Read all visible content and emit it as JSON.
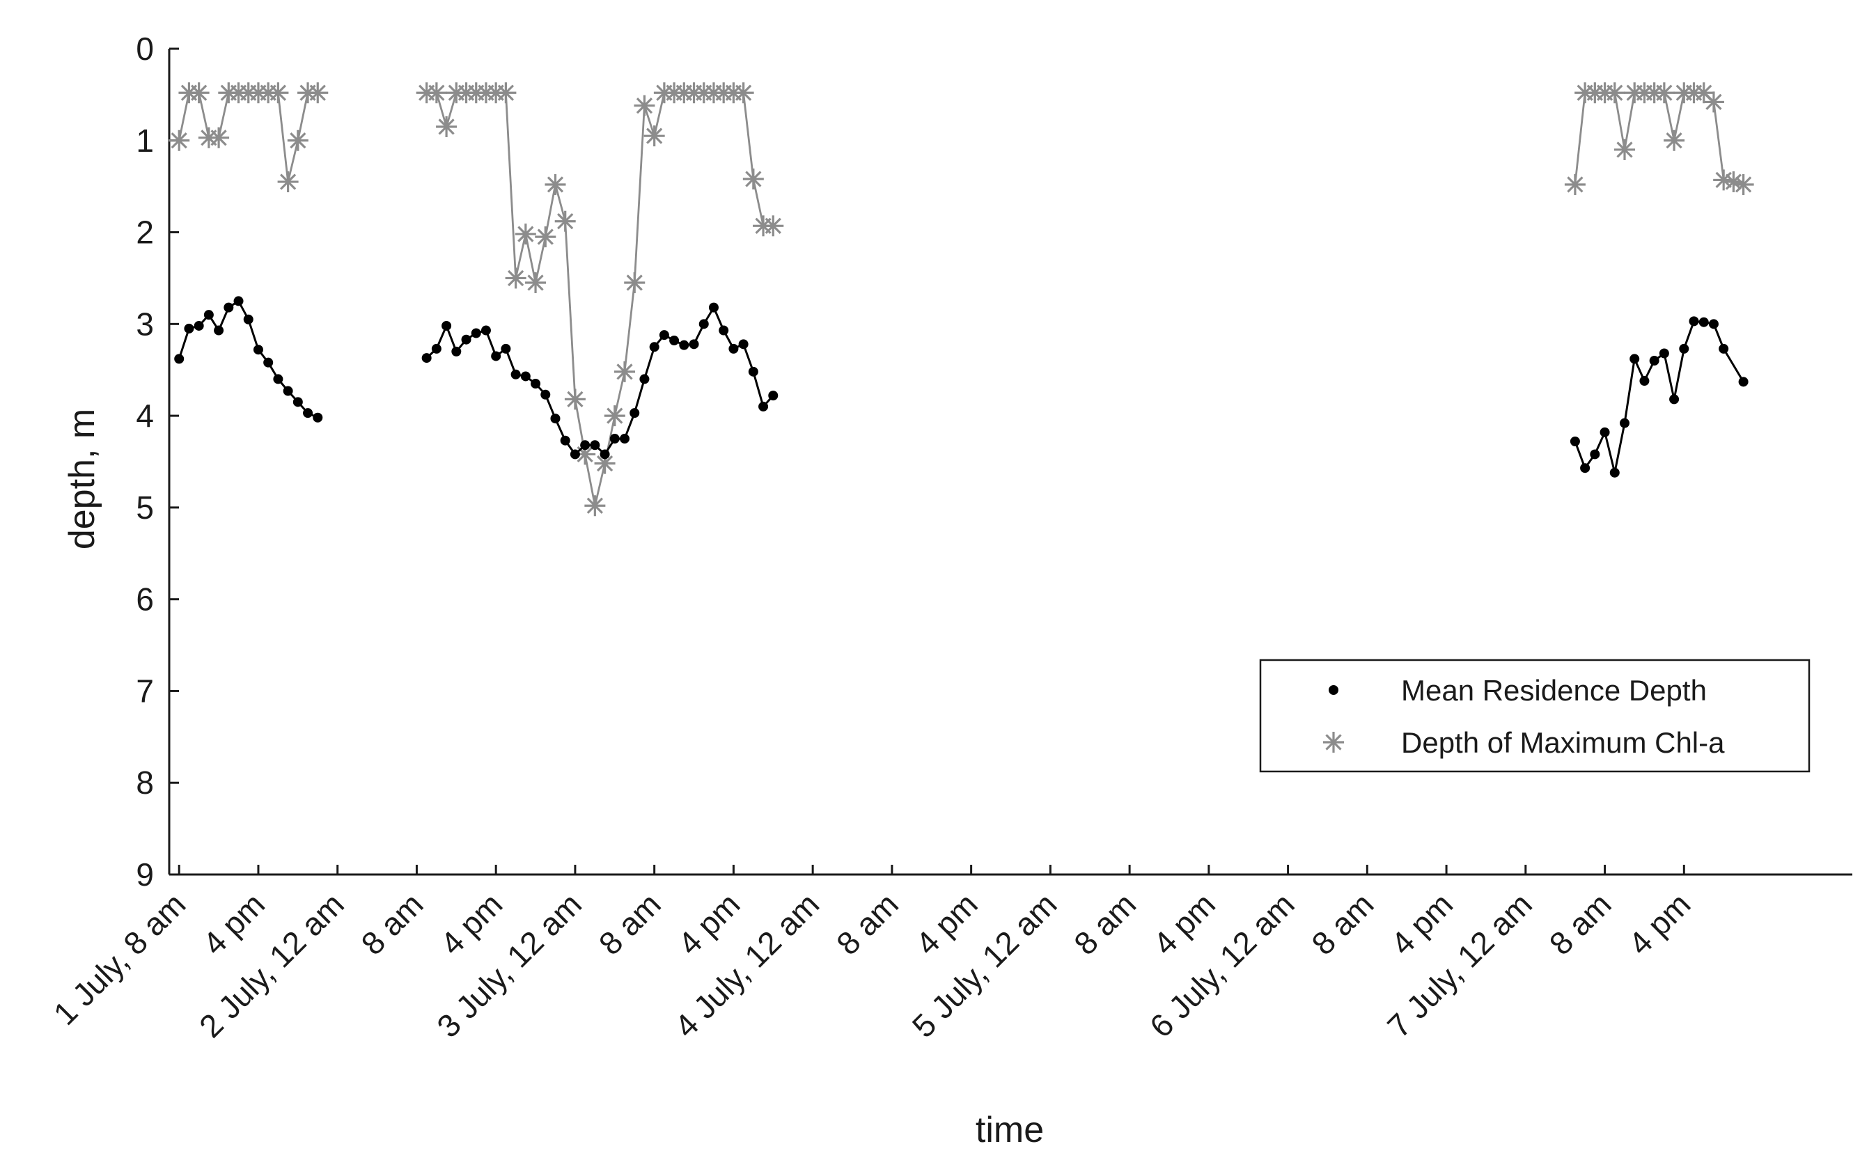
{
  "chart_data": {
    "type": "line",
    "title": "",
    "xlabel": "time",
    "ylabel": "depth, m",
    "ylim": [
      0,
      9
    ],
    "y_reversed": true,
    "yticks": [
      "0",
      "1",
      "2",
      "3",
      "4",
      "5",
      "6",
      "7",
      "8",
      "9"
    ],
    "xlim": [
      7,
      177
    ],
    "x_units": "hours since 1 July 12 am",
    "x_ticks": [
      {
        "hour": 8,
        "label": "1 July, 8 am"
      },
      {
        "hour": 16,
        "label": "4 pm"
      },
      {
        "hour": 24,
        "label": "2 July, 12 am"
      },
      {
        "hour": 32,
        "label": "8 am"
      },
      {
        "hour": 40,
        "label": "4 pm"
      },
      {
        "hour": 48,
        "label": "3 July, 12 am"
      },
      {
        "hour": 56,
        "label": "8 am"
      },
      {
        "hour": 64,
        "label": "4 pm"
      },
      {
        "hour": 72,
        "label": "4 July, 12 am"
      },
      {
        "hour": 80,
        "label": "8 am"
      },
      {
        "hour": 88,
        "label": "4 pm"
      },
      {
        "hour": 96,
        "label": "5 July, 12 am"
      },
      {
        "hour": 104,
        "label": "8 am"
      },
      {
        "hour": 112,
        "label": "4 pm"
      },
      {
        "hour": 120,
        "label": "6 July, 12 am"
      },
      {
        "hour": 128,
        "label": "8 am"
      },
      {
        "hour": 136,
        "label": "4 pm"
      },
      {
        "hour": 144,
        "label": "7 July, 12 am"
      },
      {
        "hour": 152,
        "label": "8 am"
      },
      {
        "hour": 160,
        "label": "4 pm"
      }
    ],
    "legend_position": "right, lower-middle",
    "series": [
      {
        "name": "Mean Residence Depth",
        "marker": "dot",
        "color": "#000000",
        "segments": [
          {
            "x": [
              8,
              9,
              10,
              11,
              12,
              13,
              14,
              15,
              16,
              17,
              18,
              19,
              20,
              21,
              22
            ],
            "y": [
              3.38,
              3.05,
              3.02,
              2.9,
              3.07,
              2.82,
              2.75,
              2.95,
              3.28,
              3.42,
              3.6,
              3.73,
              3.85,
              3.97,
              4.02
            ]
          },
          {
            "x": [
              33,
              34,
              35,
              36,
              37,
              38,
              39,
              40,
              41,
              42,
              43,
              44,
              45,
              46,
              47,
              48,
              49,
              50,
              51,
              52,
              53,
              54,
              55,
              56,
              57,
              58,
              59,
              60,
              61,
              62,
              63,
              64,
              65,
              66,
              67,
              68
            ],
            "y": [
              3.37,
              3.27,
              3.02,
              3.3,
              3.17,
              3.1,
              3.07,
              3.35,
              3.27,
              3.55,
              3.57,
              3.65,
              3.77,
              4.03,
              4.27,
              4.42,
              4.32,
              4.32,
              4.42,
              4.25,
              4.25,
              3.97,
              3.6,
              3.25,
              3.12,
              3.18,
              3.23,
              3.22,
              3.0,
              2.82,
              3.07,
              3.27,
              3.22,
              3.52,
              3.9,
              3.78
            ]
          },
          {
            "x": [
              149,
              150,
              151,
              152,
              153,
              154,
              155,
              156,
              157,
              158,
              159,
              160,
              161,
              162,
              163,
              164,
              166
            ],
            "y": [
              4.28,
              4.57,
              4.42,
              4.18,
              4.62,
              4.08,
              3.38,
              3.62,
              3.4,
              3.32,
              3.82,
              3.27,
              2.97,
              2.98,
              3.0,
              3.27,
              3.63
            ]
          }
        ]
      },
      {
        "name": "Depth of Maximum Chl-a",
        "marker": "asterisk",
        "color": "#8c8c8c",
        "segments": [
          {
            "x": [
              8,
              9,
              10,
              11,
              12,
              13,
              14,
              15,
              16,
              17,
              18,
              19,
              20,
              21,
              22
            ],
            "y": [
              1.0,
              0.48,
              0.48,
              0.97,
              0.97,
              0.48,
              0.48,
              0.48,
              0.48,
              0.48,
              0.48,
              1.45,
              1.0,
              0.48,
              0.48
            ]
          },
          {
            "x": [
              33,
              34,
              35,
              36,
              37,
              38,
              39,
              40,
              41,
              42,
              43,
              44,
              45,
              46,
              47,
              48,
              49,
              50,
              51,
              52,
              53,
              54,
              55,
              56,
              57,
              58,
              59,
              60,
              61,
              62,
              63,
              64,
              65,
              66,
              67,
              68
            ],
            "y": [
              0.48,
              0.48,
              0.85,
              0.48,
              0.48,
              0.48,
              0.48,
              0.48,
              0.48,
              2.5,
              2.02,
              2.55,
              2.05,
              1.48,
              1.88,
              3.82,
              4.42,
              4.98,
              4.52,
              4.0,
              3.52,
              2.55,
              0.62,
              0.95,
              0.48,
              0.48,
              0.48,
              0.48,
              0.48,
              0.48,
              0.48,
              0.48,
              0.48,
              1.42,
              1.93,
              1.93
            ]
          },
          {
            "x": [
              149,
              150,
              151,
              152,
              153,
              154,
              155,
              156,
              157,
              158,
              159,
              160,
              161,
              162,
              163,
              164,
              165,
              166
            ],
            "y": [
              1.48,
              0.48,
              0.48,
              0.48,
              0.48,
              1.1,
              0.48,
              0.48,
              0.48,
              0.48,
              1.0,
              0.48,
              0.48,
              0.48,
              0.58,
              1.43,
              1.45,
              1.48
            ]
          }
        ]
      }
    ]
  }
}
